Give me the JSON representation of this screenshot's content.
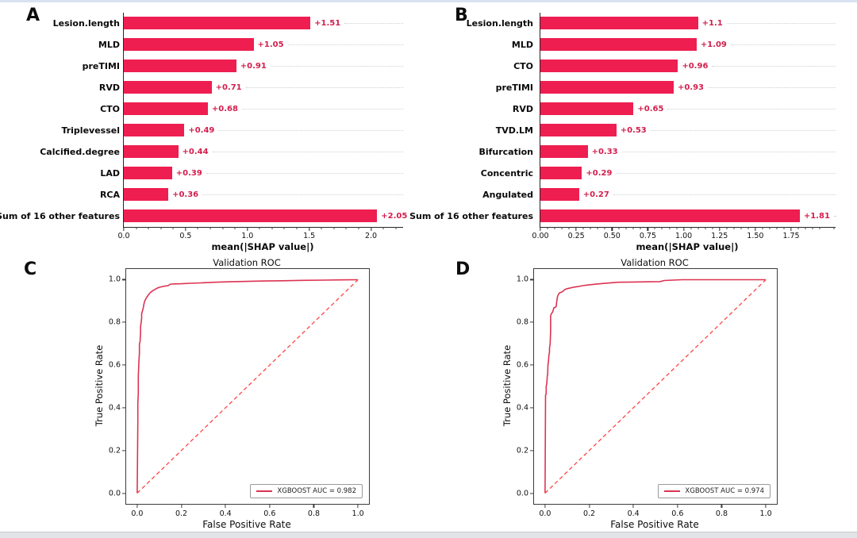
{
  "figure": {
    "description": "Four-panel figure: SHAP mean(|SHAP value|) bar charts (A, B) and validation ROC curves (C, D)"
  },
  "colors": {
    "bar": "#ee1e50",
    "value_label": "#d21f4d",
    "axis": "#262626",
    "leader_dots": "#d0d0d0",
    "roc_curve": "#dc3352",
    "diagonal": "#ff4545",
    "panel_letter": "#0d0d0d",
    "top_strip": "#d8e2f0",
    "bottom_strip": "#e3e4e8"
  },
  "chart_data": [
    {
      "panel": "A",
      "type": "bar",
      "orientation": "horizontal",
      "title": "",
      "xlabel": "mean(|SHAP value|)",
      "ylabel": "",
      "categories": [
        "Lesion.length",
        "MLD",
        "preTIMI",
        "RVD",
        "CTO",
        "Triplevessel",
        "Calcified.degree",
        "LAD",
        "RCA",
        "Sum of 16 other features"
      ],
      "values": [
        1.51,
        1.05,
        0.91,
        0.71,
        0.68,
        0.49,
        0.44,
        0.39,
        0.36,
        2.05
      ],
      "value_labels": [
        "+1.51",
        "+1.05",
        "+0.91",
        "+0.71",
        "+0.68",
        "+0.49",
        "+0.44",
        "+0.39",
        "+0.36",
        "+2.05"
      ],
      "xlim": [
        0,
        2.26
      ],
      "xticks": [
        0.0,
        0.5,
        1.0,
        1.5,
        2.0
      ],
      "xtick_labels": [
        "0.0",
        "0.5",
        "1.0",
        "1.5",
        "2.0"
      ],
      "xtick_minor_step": 0.1,
      "grid": "dotted-leaders"
    },
    {
      "panel": "B",
      "type": "bar",
      "orientation": "horizontal",
      "title": "",
      "xlabel": "mean(|SHAP value|)",
      "ylabel": "",
      "categories": [
        "Lesion.length",
        "MLD",
        "CTO",
        "preTIMI",
        "RVD",
        "TVD.LM",
        "Bifurcation",
        "Concentric",
        "Angulated",
        "Sum of 16 other features"
      ],
      "values": [
        1.1,
        1.09,
        0.96,
        0.93,
        0.65,
        0.53,
        0.33,
        0.29,
        0.27,
        1.81
      ],
      "value_labels": [
        "+1.1",
        "+1.09",
        "+0.96",
        "+0.93",
        "+0.65",
        "+0.53",
        "+0.33",
        "+0.29",
        "+0.27",
        "+1.81"
      ],
      "xlim": [
        0,
        2.06
      ],
      "xticks": [
        0.0,
        0.25,
        0.5,
        0.75,
        1.0,
        1.25,
        1.5,
        1.75
      ],
      "xtick_labels": [
        "0.00",
        "0.25",
        "0.50",
        "0.75",
        "1.00",
        "1.25",
        "1.50",
        "1.75"
      ],
      "xtick_minor_step": 0.05,
      "grid": "dotted-leaders"
    },
    {
      "panel": "C",
      "type": "line",
      "title": "Validation ROC",
      "xlabel": "False Positive Rate",
      "ylabel": "True Positive Rate",
      "xlim": [
        0,
        1
      ],
      "ylim": [
        0,
        1
      ],
      "xticks": [
        0.0,
        0.2,
        0.4,
        0.6,
        0.8,
        1.0
      ],
      "xtick_labels": [
        "0.0",
        "0.2",
        "0.4",
        "0.6",
        "0.8",
        "1.0"
      ],
      "yticks": [
        0.0,
        0.2,
        0.4,
        0.6,
        0.8,
        1.0
      ],
      "ytick_labels": [
        "0.0",
        "0.2",
        "0.4",
        "0.6",
        "0.8",
        "1.0"
      ],
      "legend": {
        "label": "XGBOOST AUC = 0.982",
        "position": "lower right"
      },
      "auc": 0.982,
      "series": [
        {
          "name": "XGBOOST ROC",
          "style": "solid",
          "points": [
            [
              0,
              0
            ],
            [
              0.003,
              0.33
            ],
            [
              0.003,
              0.42
            ],
            [
              0.005,
              0.47
            ],
            [
              0.005,
              0.55
            ],
            [
              0.007,
              0.6
            ],
            [
              0.008,
              0.62
            ],
            [
              0.01,
              0.655
            ],
            [
              0.01,
              0.7
            ],
            [
              0.013,
              0.71
            ],
            [
              0.015,
              0.75
            ],
            [
              0.015,
              0.78
            ],
            [
              0.018,
              0.8
            ],
            [
              0.02,
              0.82
            ],
            [
              0.02,
              0.84
            ],
            [
              0.024,
              0.855
            ],
            [
              0.028,
              0.87
            ],
            [
              0.03,
              0.885
            ],
            [
              0.034,
              0.9
            ],
            [
              0.04,
              0.912
            ],
            [
              0.045,
              0.92
            ],
            [
              0.05,
              0.928
            ],
            [
              0.06,
              0.94
            ],
            [
              0.07,
              0.948
            ],
            [
              0.08,
              0.954
            ],
            [
              0.09,
              0.96
            ],
            [
              0.1,
              0.964
            ],
            [
              0.115,
              0.968
            ],
            [
              0.13,
              0.971
            ],
            [
              0.14,
              0.972
            ],
            [
              0.15,
              0.979
            ],
            [
              0.17,
              0.98
            ],
            [
              0.2,
              0.981
            ],
            [
              0.24,
              0.983
            ],
            [
              0.29,
              0.985
            ],
            [
              0.35,
              0.988
            ],
            [
              0.42,
              0.99
            ],
            [
              0.5,
              0.992
            ],
            [
              0.58,
              0.994
            ],
            [
              0.66,
              0.995
            ],
            [
              0.75,
              0.997
            ],
            [
              0.85,
              0.998
            ],
            [
              0.93,
              0.999
            ],
            [
              1,
              1
            ]
          ]
        },
        {
          "name": "chance",
          "style": "dashed",
          "points": [
            [
              0,
              0
            ],
            [
              1,
              1
            ]
          ]
        }
      ]
    },
    {
      "panel": "D",
      "type": "line",
      "title": "Validation ROC",
      "xlabel": "False Positive Rate",
      "ylabel": "True Positive Rate",
      "xlim": [
        0,
        1
      ],
      "ylim": [
        0,
        1
      ],
      "xticks": [
        0.0,
        0.2,
        0.4,
        0.6,
        0.8,
        1.0
      ],
      "xtick_labels": [
        "0.0",
        "0.2",
        "0.4",
        "0.6",
        "0.8",
        "1.0"
      ],
      "yticks": [
        0.0,
        0.2,
        0.4,
        0.6,
        0.8,
        1.0
      ],
      "ytick_labels": [
        "0.0",
        "0.2",
        "0.4",
        "0.6",
        "0.8",
        "1.0"
      ],
      "legend": {
        "label": "XGBOOST AUC = 0.974",
        "position": "lower right"
      },
      "auc": 0.974,
      "series": [
        {
          "name": "XGBOOST ROC",
          "style": "solid",
          "points": [
            [
              0,
              0
            ],
            [
              0.002,
              0.46
            ],
            [
              0.005,
              0.465
            ],
            [
              0.005,
              0.5
            ],
            [
              0.008,
              0.515
            ],
            [
              0.009,
              0.53
            ],
            [
              0.01,
              0.55
            ],
            [
              0.012,
              0.555
            ],
            [
              0.013,
              0.6
            ],
            [
              0.015,
              0.615
            ],
            [
              0.016,
              0.63
            ],
            [
              0.018,
              0.65
            ],
            [
              0.02,
              0.66
            ],
            [
              0.02,
              0.68
            ],
            [
              0.023,
              0.7
            ],
            [
              0.025,
              0.76
            ],
            [
              0.025,
              0.83
            ],
            [
              0.028,
              0.84
            ],
            [
              0.032,
              0.845
            ],
            [
              0.035,
              0.85
            ],
            [
              0.038,
              0.862
            ],
            [
              0.04,
              0.868
            ],
            [
              0.045,
              0.87
            ],
            [
              0.05,
              0.874
            ],
            [
              0.053,
              0.9
            ],
            [
              0.056,
              0.92
            ],
            [
              0.06,
              0.93
            ],
            [
              0.065,
              0.938
            ],
            [
              0.07,
              0.94
            ],
            [
              0.08,
              0.945
            ],
            [
              0.09,
              0.954
            ],
            [
              0.1,
              0.958
            ],
            [
              0.11,
              0.96
            ],
            [
              0.13,
              0.965
            ],
            [
              0.15,
              0.968
            ],
            [
              0.17,
              0.972
            ],
            [
              0.2,
              0.976
            ],
            [
              0.24,
              0.98
            ],
            [
              0.28,
              0.984
            ],
            [
              0.33,
              0.988
            ],
            [
              0.4,
              0.989
            ],
            [
              0.47,
              0.99
            ],
            [
              0.52,
              0.991
            ],
            [
              0.54,
              0.996
            ],
            [
              0.58,
              0.998
            ],
            [
              0.62,
              1
            ],
            [
              1,
              1
            ]
          ]
        },
        {
          "name": "chance",
          "style": "dashed",
          "points": [
            [
              0,
              0
            ],
            [
              1,
              1
            ]
          ]
        }
      ]
    }
  ]
}
